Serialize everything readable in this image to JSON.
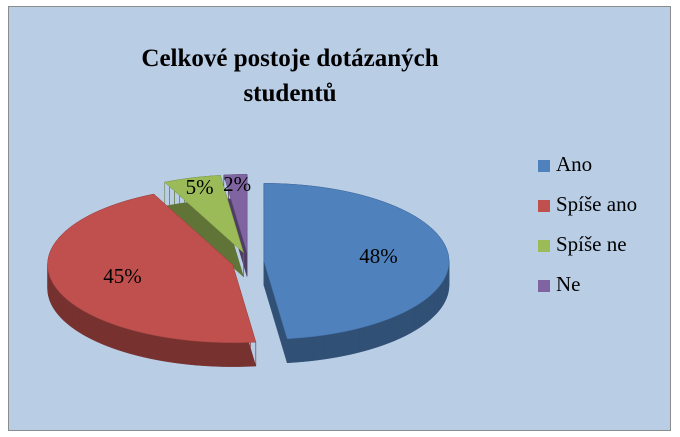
{
  "chart_data": {
    "type": "pie",
    "title": "Celkové postoje dotázaných studentů",
    "categories": [
      "Ano",
      "Spíše ano",
      "Spíše ne",
      "Ne"
    ],
    "values": [
      48,
      45,
      5,
      2
    ],
    "value_labels": [
      "48%",
      "45%",
      "5%",
      "2%"
    ],
    "colors": [
      "#4f81bd",
      "#c0504d",
      "#9bbb59",
      "#8064a2"
    ],
    "legend": "right"
  }
}
